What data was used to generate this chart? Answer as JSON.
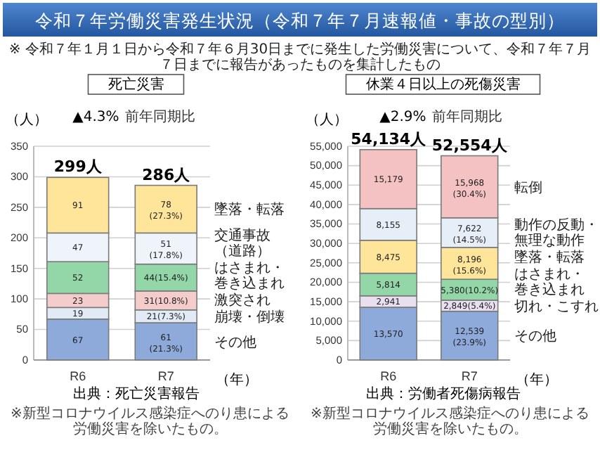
{
  "chart_data": [
    {
      "type": "bar",
      "stacked": true,
      "title": "死亡災害",
      "xlabel": "（年）",
      "ylabel": "（人）",
      "categories": [
        "R6",
        "R7"
      ],
      "ylim": [
        0,
        350
      ],
      "yticks": [
        0,
        50,
        100,
        150,
        200,
        250,
        300,
        350
      ],
      "grid": "y",
      "legend": "right",
      "series": [
        {
          "name": "その他",
          "color": "#8eaadb",
          "values": [
            67,
            61
          ],
          "value_labels": [
            "67",
            "61(21.3%)"
          ]
        },
        {
          "name": "崩壊・倒壊",
          "color": "#e2ebf5",
          "values": [
            19,
            21
          ],
          "value_labels": [
            "19",
            "21(7.3%)"
          ]
        },
        {
          "name": "激突され",
          "color": "#f4cccc",
          "values": [
            23,
            31
          ],
          "value_labels": [
            "23",
            "31(10.8%)"
          ]
        },
        {
          "name": "はさまれ・巻き込まれ",
          "color": "#93d6a8",
          "values": [
            52,
            44
          ],
          "value_labels": [
            "52",
            "44(15.4%)"
          ]
        },
        {
          "name": "交通事故（道路）",
          "color": "#eef4fa",
          "values": [
            47,
            51
          ],
          "value_labels": [
            "47",
            "51(17.8%)"
          ]
        },
        {
          "name": "墜落・転落",
          "color": "#ffe59a",
          "values": [
            91,
            78
          ],
          "value_labels": [
            "91",
            "78(27.3%)"
          ]
        }
      ],
      "totals": [
        "299人",
        "286人"
      ],
      "annotations": [
        "令和７年労働災害発生状況（令和７年７月速報値・事故の型別）",
        "※ 令和７年１月１日から令和７年６月30日までに発生した労働災害について、令和７年７月７日までに報告があったものを集計したもの",
        "▲4.3%",
        "前年同期比",
        "出典：死亡災害報告",
        "※新型コロナウイルス感染症へのり患による労働災害を除いたもの。"
      ]
    },
    {
      "type": "bar",
      "stacked": true,
      "title": "休業４日以上の死傷災害",
      "xlabel": "（年）",
      "ylabel": "（人）",
      "categories": [
        "R6",
        "R7"
      ],
      "ylim": [
        0,
        55000
      ],
      "yticks": [
        0,
        {
          "value": 5000,
          "label": "5,000"
        },
        {
          "value": 10000,
          "label": "10,000"
        },
        {
          "value": 15000,
          "label": "15,000"
        },
        {
          "value": 20000,
          "label": "20,000"
        },
        {
          "value": 25000,
          "label": "25,000"
        },
        {
          "value": 30000,
          "label": "30,000"
        },
        {
          "value": 35000,
          "label": "35,000"
        },
        {
          "value": 40000,
          "label": "40,000"
        },
        {
          "value": 45000,
          "label": "45,000"
        },
        {
          "value": 50000,
          "label": "50,000"
        },
        {
          "value": 55000,
          "label": "55,000"
        }
      ],
      "grid": "y",
      "legend": "right",
      "series": [
        {
          "name": "その他",
          "color": "#8eaadb",
          "values": [
            13570,
            12539
          ],
          "value_labels": [
            "13,570",
            "12,539(23.9%)"
          ]
        },
        {
          "name": "切れ・こすれ",
          "color": "#e8dff0",
          "values": [
            2941,
            2849
          ],
          "value_labels": [
            "2,941",
            "2,849(5.4%)"
          ]
        },
        {
          "name": "はさまれ・巻き込まれ",
          "color": "#93d6a8",
          "values": [
            5814,
            5380
          ],
          "value_labels": [
            "5,814",
            "5,380(10.2%)"
          ]
        },
        {
          "name": "墜落・転落",
          "color": "#ffe59a",
          "values": [
            8475,
            8196
          ],
          "value_labels": [
            "8,475",
            "8,196(15.6%)"
          ]
        },
        {
          "name": "動作の反動・無理な動作",
          "color": "#e6eef8",
          "values": [
            8155,
            7622
          ],
          "value_labels": [
            "8,155",
            "7,622(14.5%)"
          ]
        },
        {
          "name": "転倒",
          "color": "#f4c2c2",
          "values": [
            15179,
            15968
          ],
          "value_labels": [
            "15,179",
            "15,968(30.4%)"
          ]
        }
      ],
      "totals": [
        "54,134人",
        "52,554人"
      ],
      "annotations": [
        "▲2.9%",
        "前年同期比",
        "出典：労働者死傷病報告",
        "※新型コロナウイルス感染症へのり患による労働災害を除いたもの。"
      ]
    }
  ]
}
